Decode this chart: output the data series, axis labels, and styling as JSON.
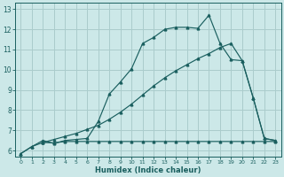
{
  "bg_color": "#cce8e8",
  "grid_color": "#aacccc",
  "line_color": "#1a5f5f",
  "xlabel": "Humidex (Indice chaleur)",
  "xlim": [
    -0.5,
    23.5
  ],
  "ylim": [
    5.7,
    13.3
  ],
  "yticks": [
    6,
    7,
    8,
    9,
    10,
    11,
    12,
    13
  ],
  "ytick_labels": [
    "6",
    "7",
    "8",
    "9",
    "10",
    "11",
    "12",
    "13"
  ],
  "xticks": [
    0,
    1,
    2,
    3,
    4,
    5,
    6,
    7,
    8,
    9,
    10,
    11,
    12,
    13,
    14,
    15,
    16,
    17,
    18,
    19,
    20,
    21,
    22,
    23
  ],
  "line1_x": [
    0,
    1,
    2,
    3,
    4,
    5,
    6,
    7,
    8,
    9,
    10,
    11,
    12,
    13,
    14,
    15,
    16,
    17,
    18,
    19,
    20,
    21,
    22,
    23
  ],
  "line1_y": [
    5.85,
    6.2,
    6.5,
    6.35,
    6.5,
    6.55,
    6.6,
    7.45,
    8.8,
    9.4,
    10.05,
    11.3,
    11.6,
    12.0,
    12.1,
    12.1,
    12.05,
    12.7,
    11.3,
    10.5,
    10.45,
    8.6,
    6.6,
    6.5
  ],
  "line2_x": [
    2,
    3,
    4,
    5,
    6,
    7,
    8,
    9,
    10,
    11,
    12,
    13,
    14,
    15,
    16,
    17,
    18,
    19,
    20,
    21,
    22,
    23
  ],
  "line2_y": [
    6.4,
    6.55,
    6.7,
    6.85,
    7.05,
    7.25,
    7.55,
    7.9,
    8.3,
    8.75,
    9.2,
    9.6,
    9.95,
    10.25,
    10.55,
    10.8,
    11.1,
    11.3,
    10.45,
    8.6,
    6.6,
    6.5
  ],
  "line3_x": [
    0,
    1,
    2,
    3,
    4,
    5,
    6,
    7,
    8,
    9,
    10,
    11,
    12,
    13,
    14,
    15,
    16,
    17,
    18,
    19,
    20,
    21,
    22,
    23
  ],
  "line3_y": [
    5.85,
    6.2,
    6.4,
    6.38,
    6.45,
    6.45,
    6.45,
    6.45,
    6.45,
    6.45,
    6.45,
    6.45,
    6.45,
    6.45,
    6.45,
    6.45,
    6.45,
    6.45,
    6.45,
    6.45,
    6.45,
    6.45,
    6.45,
    6.45
  ]
}
